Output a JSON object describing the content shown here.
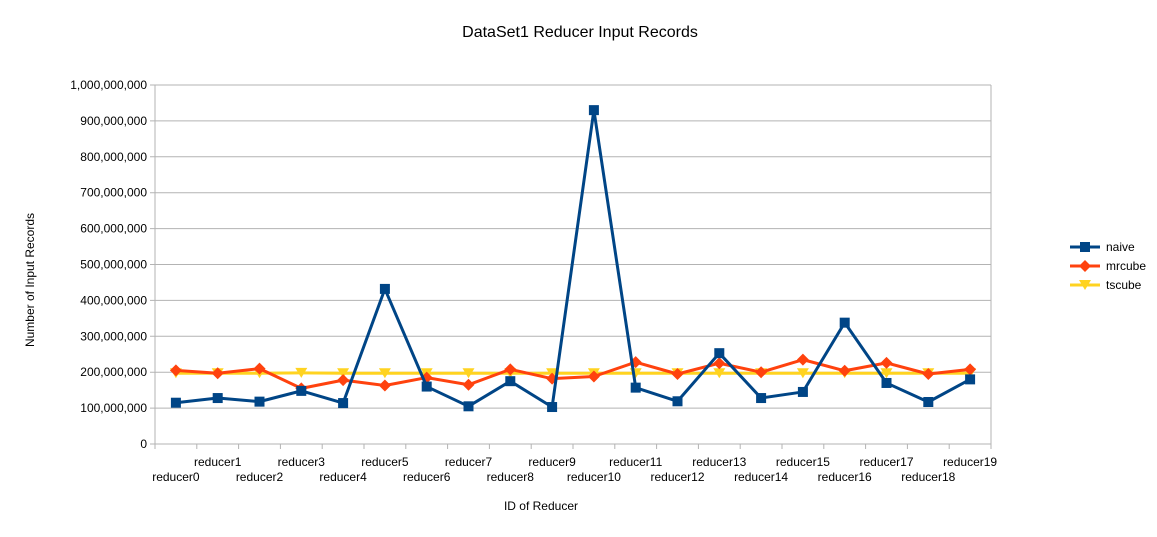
{
  "chart_data": {
    "type": "line",
    "title": "DataSet1 Reducer Input Records",
    "xlabel": "ID of Reducer",
    "ylabel": "Number of Input Records",
    "ylim": [
      0,
      1000000000
    ],
    "yticks": [
      0,
      100000000,
      200000000,
      300000000,
      400000000,
      500000000,
      600000000,
      700000000,
      800000000,
      900000000,
      1000000000
    ],
    "ytick_labels": [
      "0",
      "100,000,000",
      "200,000,000",
      "300,000,000",
      "400,000,000",
      "500,000,000",
      "600,000,000",
      "700,000,000",
      "800,000,000",
      "900,000,000",
      "1,000,000,000"
    ],
    "grid": "horizontal",
    "legend_position": "right",
    "categories": [
      "reducer0",
      "reducer1",
      "reducer2",
      "reducer3",
      "reducer4",
      "reducer5",
      "reducer6",
      "reducer7",
      "reducer8",
      "reducer9",
      "reducer10",
      "reducer11",
      "reducer12",
      "reducer13",
      "reducer14",
      "reducer15",
      "reducer16",
      "reducer17",
      "reducer18",
      "reducer19"
    ],
    "series": [
      {
        "name": "naive",
        "color": "#004586",
        "marker": "square",
        "values": [
          115000000,
          128000000,
          118000000,
          148000000,
          114000000,
          432000000,
          160000000,
          105000000,
          175000000,
          103000000,
          930000000,
          157000000,
          119000000,
          253000000,
          128000000,
          145000000,
          338000000,
          170000000,
          117000000,
          180000000
        ]
      },
      {
        "name": "mrcube",
        "color": "#ff420e",
        "marker": "diamond",
        "values": [
          205000000,
          197000000,
          210000000,
          155000000,
          178000000,
          163000000,
          185000000,
          165000000,
          208000000,
          182000000,
          188000000,
          228000000,
          195000000,
          225000000,
          200000000,
          235000000,
          204000000,
          226000000,
          195000000,
          208000000
        ]
      },
      {
        "name": "tscube",
        "color": "#ffd320",
        "marker": "triangle-down",
        "values": [
          197000000,
          197000000,
          197000000,
          198000000,
          197000000,
          197000000,
          197000000,
          197000000,
          197000000,
          197000000,
          197000000,
          197000000,
          197000000,
          197000000,
          197000000,
          197000000,
          197000000,
          197000000,
          197000000,
          197000000
        ]
      }
    ]
  }
}
